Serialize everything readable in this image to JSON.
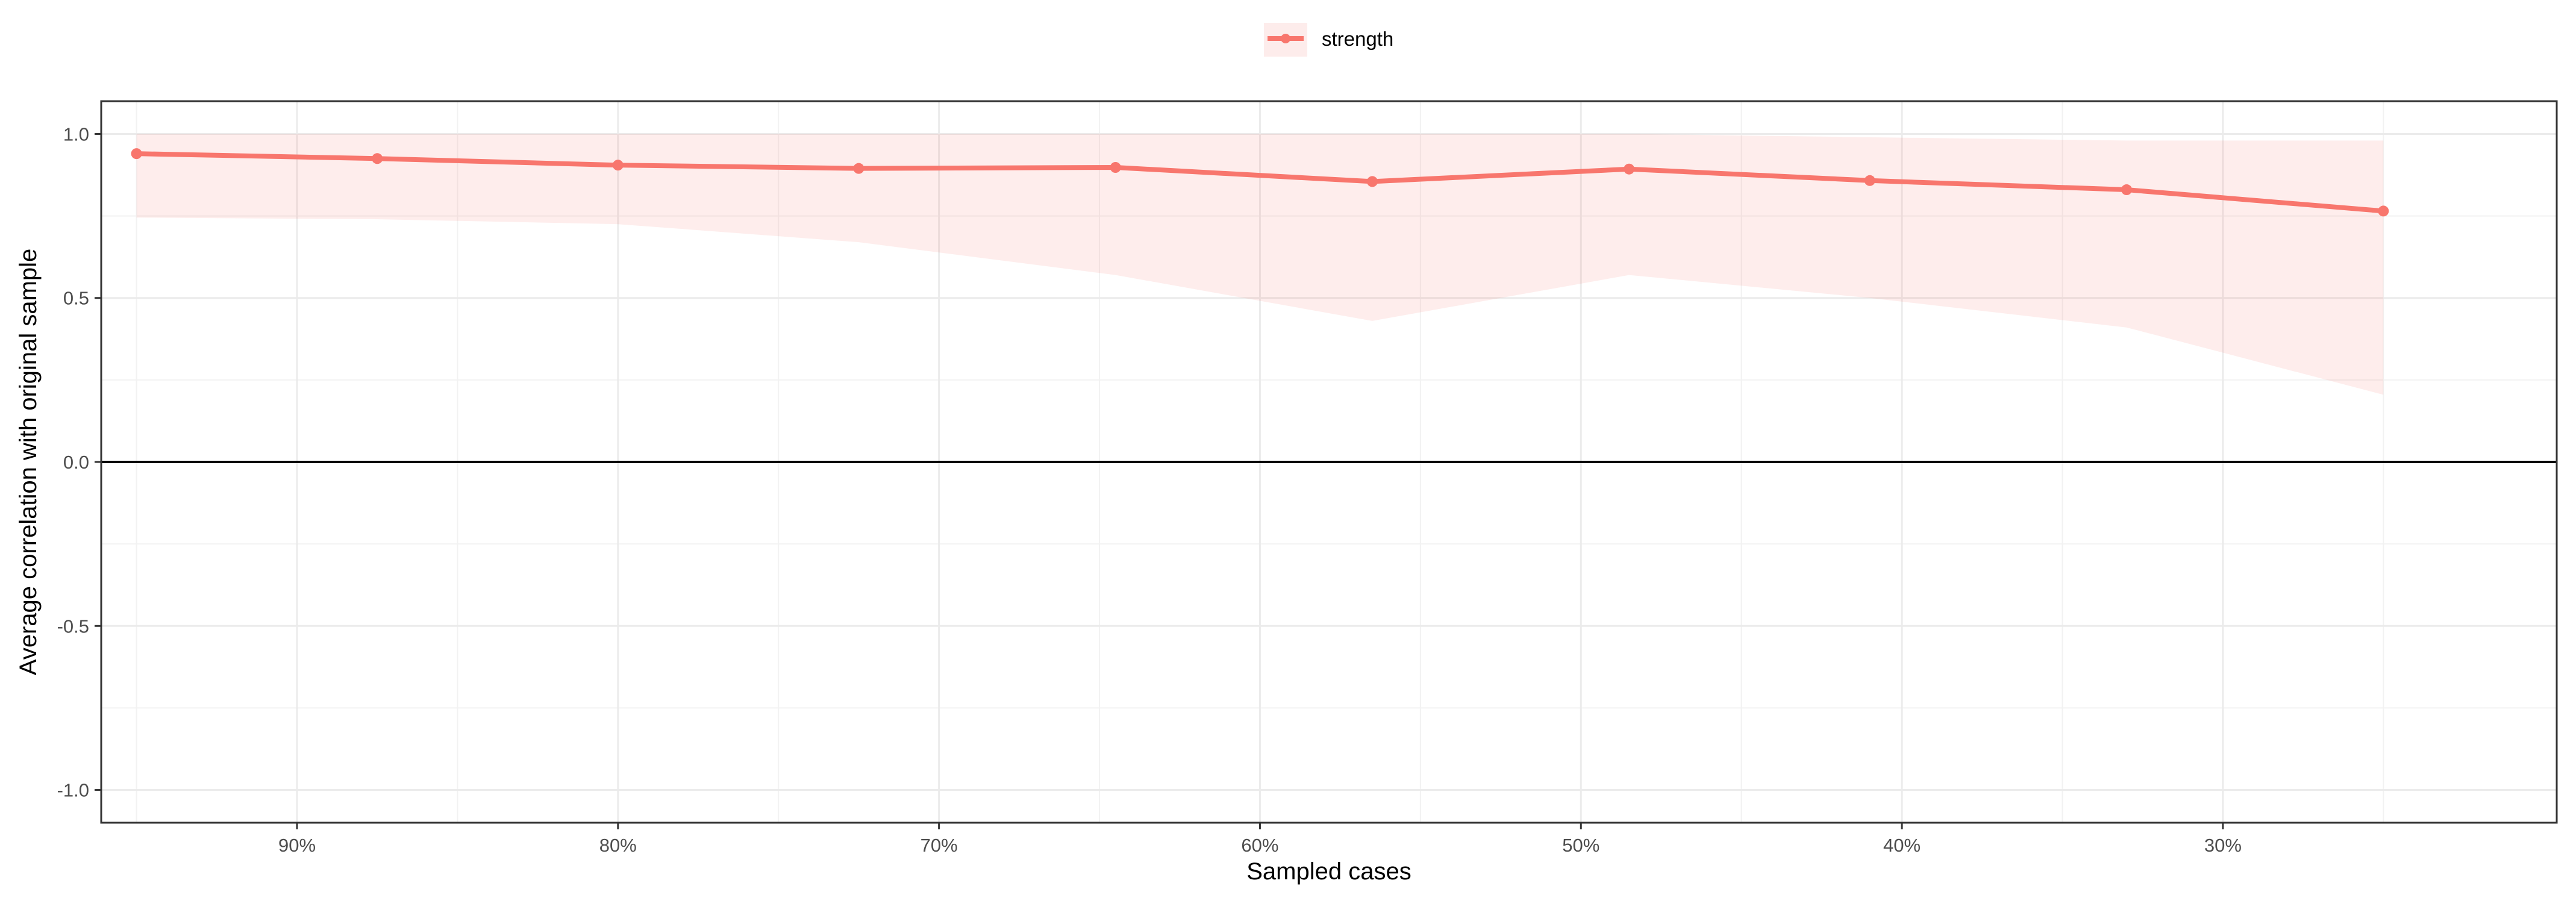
{
  "chart_data": {
    "type": "line",
    "xlabel": "Sampled cases",
    "ylabel": "Average correlation with original sample",
    "x_axis_reversed": true,
    "xlim": [
      96.1,
      19.6
    ],
    "ylim": [
      -1.1,
      1.1
    ],
    "x_ticks": [
      90,
      80,
      70,
      60,
      50,
      40,
      30
    ],
    "x_tick_labels": [
      "90%",
      "80%",
      "70%",
      "60%",
      "50%",
      "40%",
      "30%"
    ],
    "y_ticks": [
      -1.0,
      -0.5,
      0.0,
      0.5,
      1.0
    ],
    "y_tick_labels": [
      "-1.0",
      "-0.5",
      "0.0",
      "0.5",
      "1.0"
    ],
    "grid": true,
    "reference_line_y": 0,
    "legend_position": "top",
    "series": [
      {
        "name": "strength",
        "color": "#f8766d",
        "ribbon_color": "#f8766d",
        "x": [
          95,
          87.5,
          80,
          72.5,
          64.5,
          56.5,
          48.5,
          41,
          33,
          25
        ],
        "y": [
          0.94,
          0.925,
          0.905,
          0.895,
          0.898,
          0.855,
          0.893,
          0.858,
          0.83,
          0.765
        ],
        "lower": [
          0.745,
          0.74,
          0.725,
          0.67,
          0.57,
          0.43,
          0.57,
          0.5,
          0.41,
          0.205
        ],
        "upper": [
          1.0,
          1.0,
          1.0,
          1.0,
          1.0,
          1.0,
          1.0,
          0.99,
          0.98,
          0.98
        ]
      }
    ]
  }
}
